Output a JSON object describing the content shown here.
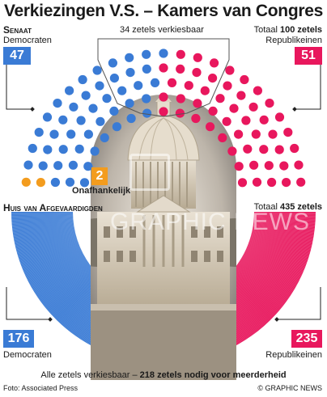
{
  "title": "Verkiezingen V.S. – Kamers van Congres",
  "senate": {
    "heading": "Senaat",
    "up_for_election_prefix": "34 zetels verkiesbaar",
    "total_prefix": "Totaal ",
    "total_value": "100 zetels",
    "democrats": {
      "label": "Democraten",
      "seats": "47"
    },
    "republicans": {
      "label": "Republikeinen",
      "seats": "51"
    },
    "independents": {
      "label": "Onafhankelijk",
      "seats": "2"
    }
  },
  "house": {
    "heading": "Huis van Afgevaardigden",
    "total_prefix": "Totaal ",
    "total_value": "435 zetels",
    "democrats": {
      "label": "Democraten",
      "seats": "176"
    },
    "republicans": {
      "label": "Republikeinen",
      "seats": "235"
    },
    "footnote_prefix": "Alle zetels verkiesbaar – ",
    "footnote_bold": "218 zetels nodig voor meerderheid"
  },
  "credits": {
    "photo": "Foto: Associated Press",
    "copyright": "© GRAPHIC NEWS"
  },
  "watermark": "GRAPHIC NEWS",
  "colors": {
    "democrat": "#3a7bd5",
    "republican": "#e8175d",
    "independent": "#f39c1e",
    "vacant": "#b9b9b9"
  },
  "icons": [
    "capitol-photo",
    "graphic-news-logo"
  ]
}
